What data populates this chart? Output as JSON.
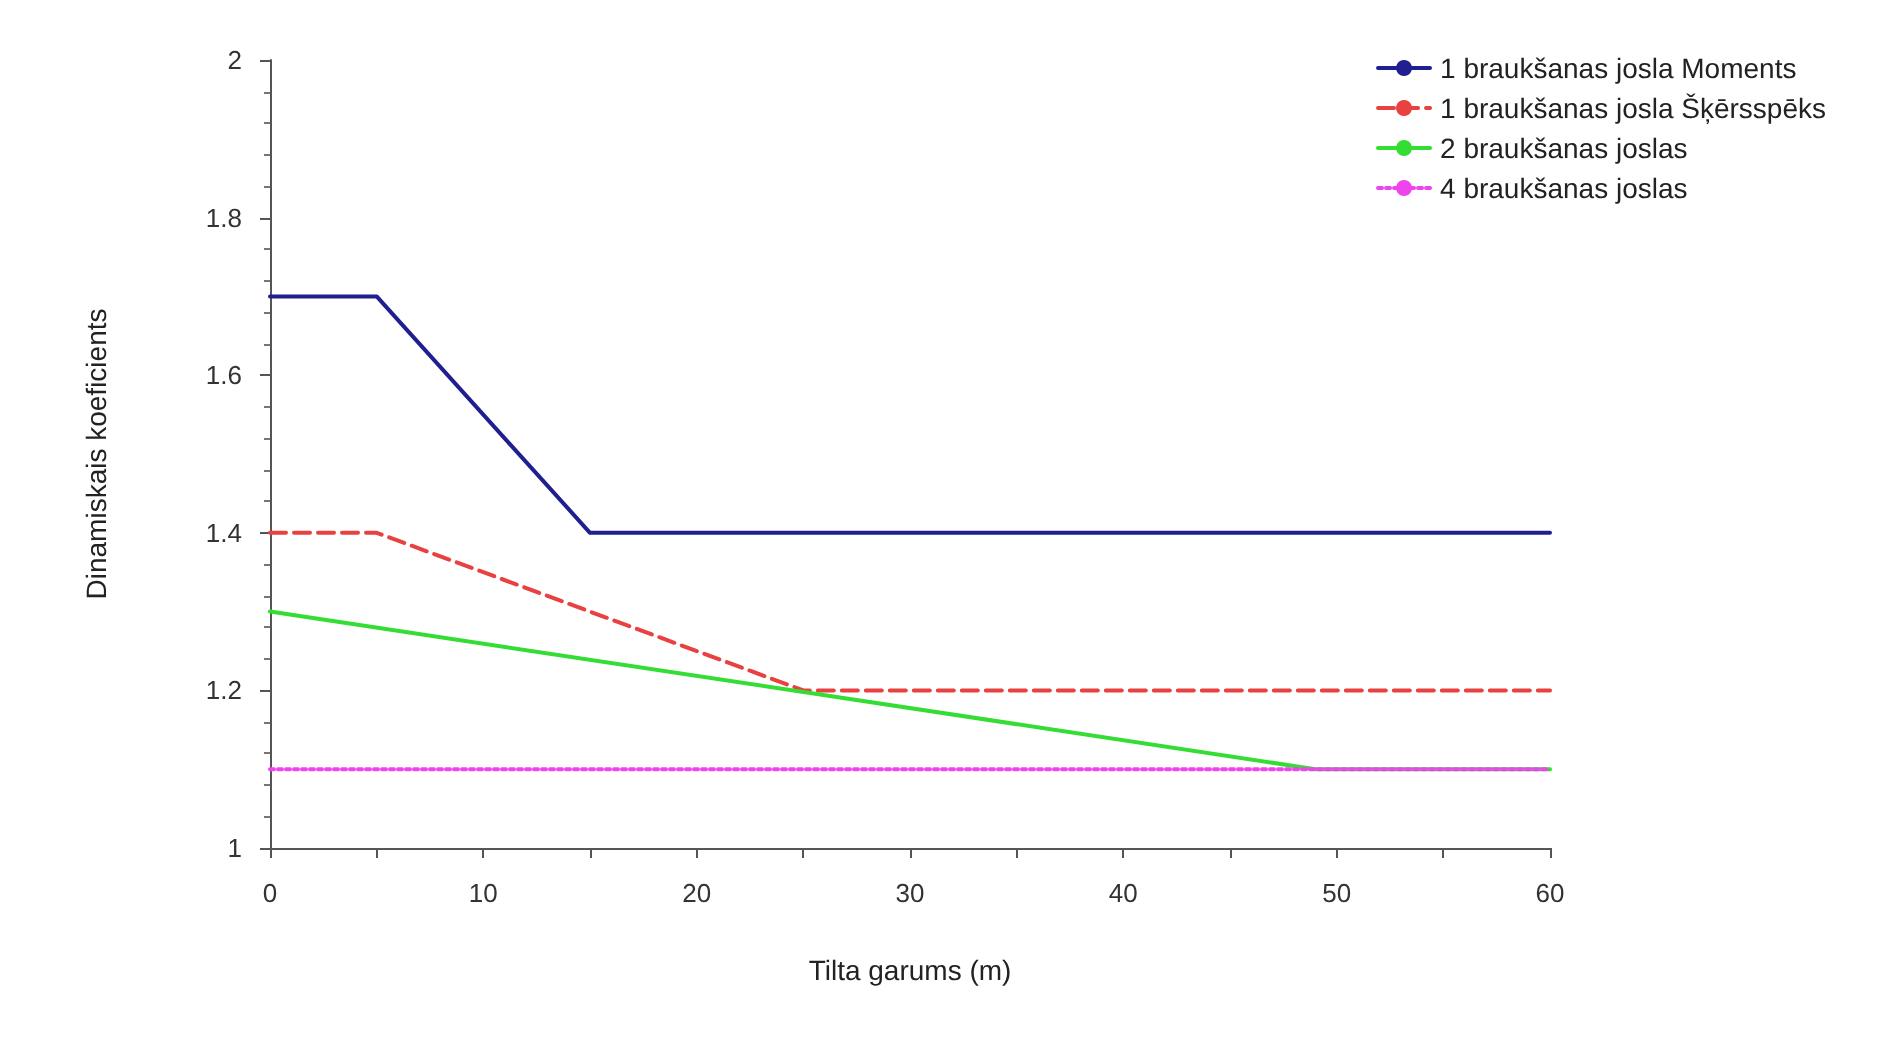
{
  "chart_data": {
    "type": "line",
    "xlabel": "Tilta garums (m)",
    "ylabel": "Dinamiskais koeficients",
    "xlim": [
      0,
      60
    ],
    "xticks": [
      0,
      {
        "value": 5,
        "label": null
      },
      10,
      {
        "value": 15,
        "label": null
      },
      20,
      {
        "value": 25,
        "label": null
      },
      30,
      {
        "value": 35,
        "label": null
      },
      40,
      {
        "value": 45,
        "label": null
      },
      50,
      {
        "value": 55,
        "label": null
      },
      60
    ],
    "ylim": [
      1,
      2
    ],
    "yticks": [
      1,
      1.2,
      1.4,
      1.6,
      1.8,
      2
    ],
    "grid": false,
    "legend": "top right",
    "marker": "none",
    "series": [
      {
        "name": "1 braukšanas josla Moments",
        "color": "#1f1f8f",
        "line_style": "solid",
        "x": [
          0,
          5,
          15,
          60
        ],
        "values": [
          1.7,
          1.7,
          1.4,
          1.4
        ]
      },
      {
        "name": "1 braukšanas josla Šķērsspēks",
        "color": "#e8413f",
        "line_style": "dashed",
        "x": [
          0,
          5,
          25,
          60
        ],
        "values": [
          1.4,
          1.4,
          1.2,
          1.2
        ]
      },
      {
        "name": "2 braukšanas joslas",
        "color": "#33dd33",
        "line_style": "solid",
        "x": [
          0,
          49,
          60
        ],
        "values": [
          1.3,
          1.1,
          1.1
        ]
      },
      {
        "name": "4 braukšanas joslas",
        "color": "#ee44ee",
        "line_style": "dotted",
        "x": [
          0,
          60
        ],
        "values": [
          1.1,
          1.1
        ]
      }
    ]
  }
}
